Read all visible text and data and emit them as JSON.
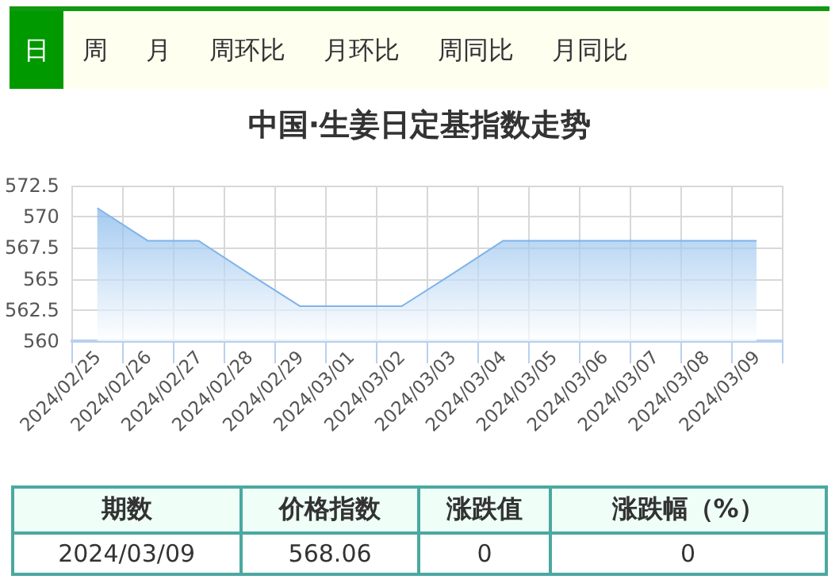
{
  "chart_data": {
    "type": "area",
    "title": "中国·生姜日定基指数走势",
    "categories": [
      "2024/02/25",
      "2024/02/26",
      "2024/02/27",
      "2024/02/28",
      "2024/02/29",
      "2024/03/01",
      "2024/03/02",
      "2024/03/03",
      "2024/03/04",
      "2024/03/05",
      "2024/03/06",
      "2024/03/07",
      "2024/03/08",
      "2024/03/09"
    ],
    "series": [
      {
        "color": "#7fb4ea",
        "values": [
          570.7,
          568.06,
          568.06,
          565.4,
          562.8,
          562.8,
          562.8,
          565.4,
          568.06,
          568.06,
          568.06,
          568.06,
          568.06,
          568.06
        ]
      }
    ],
    "ylim": [
      560,
      572.5
    ],
    "yticks": [
      560,
      562.5,
      565,
      567.5,
      570,
      572.5
    ],
    "grid": true,
    "marker": "none",
    "line_style": "solid",
    "annotations": [
      "日",
      "周",
      "月",
      "周环比",
      "月环比",
      "周同比",
      "月同比",
      "期数",
      "价格指数",
      "涨跌值",
      "涨跌幅（%）",
      "2024/03/09",
      "568.06",
      "0",
      "0"
    ]
  }
}
